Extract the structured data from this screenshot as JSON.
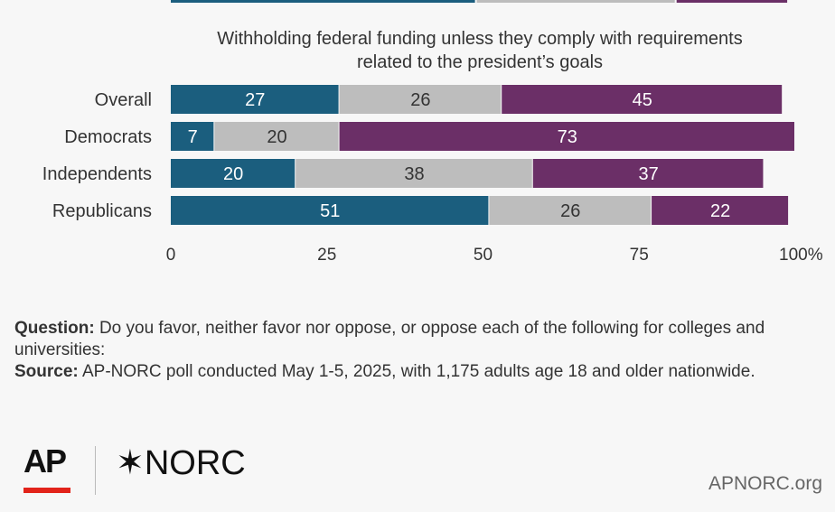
{
  "chart_data": {
    "type": "bar",
    "orientation": "horizontal",
    "stacked": true,
    "subtitle_lines": [
      "Withholding federal funding unless they comply with requirements",
      "related to the president’s goals"
    ],
    "categories": [
      "Overall",
      "Democrats",
      "Independents",
      "Republicans"
    ],
    "series": [
      {
        "values": [
          27,
          7,
          20,
          51
        ],
        "color": "#1b5e7e"
      },
      {
        "values": [
          26,
          20,
          38,
          26
        ],
        "color": "#bdbdbd"
      },
      {
        "values": [
          45,
          73,
          37,
          22
        ],
        "color": "#6b2f67"
      }
    ],
    "xlim": [
      0,
      100
    ],
    "xticks": [
      "0",
      "25",
      "50",
      "75",
      "100%"
    ],
    "grid": false,
    "top_bar_fragment": [
      {
        "value": 49,
        "color": "#1b5e7e"
      },
      {
        "value": 32,
        "color": "#bdbdbd"
      },
      {
        "value": 18,
        "color": "#6b2f67"
      }
    ]
  },
  "footnote": {
    "question_label": "Question:",
    "question_text": " Do you favor, neither favor nor oppose, or oppose each of the following for colleges and universities:",
    "source_label": "Source:",
    "source_text": " AP-NORC poll conducted May 1-5, 2025, with 1,175 adults age 18 and older nationwide."
  },
  "branding": {
    "ap_logo": "AP",
    "norc_logo": "NORC",
    "norc_mark": "✶",
    "site": "APNORC.org"
  }
}
